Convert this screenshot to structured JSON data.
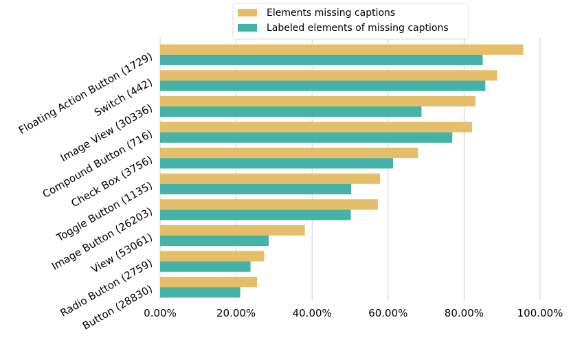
{
  "chart_data": {
    "type": "bar",
    "orientation": "horizontal",
    "categories": [
      "Floating Action Button (1729)",
      "Switch (442)",
      "Image View (30336)",
      "Compound Button (716)",
      "Check Box (3756)",
      "Toggle Button (1135)",
      "Image Button (26203)",
      "View (53061)",
      "Radio Button (2759)",
      "Button (28830)"
    ],
    "series": [
      {
        "name": "Elements missing captions",
        "color": "#e5be6a",
        "values": [
          95.6,
          88.7,
          83.0,
          82.1,
          67.9,
          57.9,
          57.3,
          38.1,
          27.4,
          25.5
        ]
      },
      {
        "name": "Labeled elements of missing captions",
        "color": "#45b2a7",
        "values": [
          84.9,
          85.6,
          68.8,
          76.9,
          61.3,
          50.3,
          50.2,
          28.6,
          23.8,
          21.1
        ]
      }
    ],
    "xlim": [
      0,
      100
    ],
    "xticks": [
      0,
      20,
      40,
      60,
      80,
      100
    ],
    "xtick_labels": [
      "0.00%",
      "20.00%",
      "40.00%",
      "60.00%",
      "80.00%",
      "100.00%"
    ],
    "grid": "vertical",
    "legend_position": "top"
  }
}
